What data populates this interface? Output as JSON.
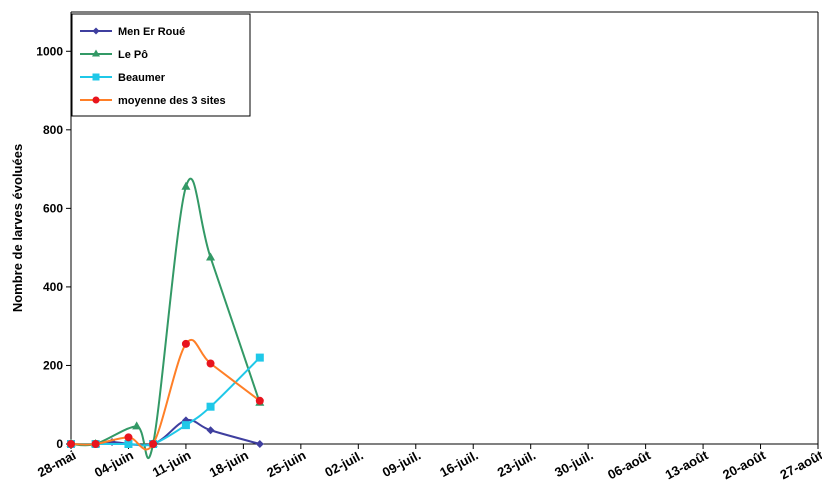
{
  "chart_data": {
    "type": "line",
    "title": "",
    "xlabel": "",
    "ylabel": "Nombre de larves évoluées",
    "ylim": [
      0,
      1100
    ],
    "yticks": [
      0,
      200,
      400,
      600,
      800,
      1000
    ],
    "xticks": [
      "28-mai",
      "04-juin",
      "11-juin",
      "18-juin",
      "25-juin",
      "02-juil.",
      "09-juil.",
      "16-juil.",
      "23-juil.",
      "30-juil.",
      "06-août",
      "13-août",
      "20-août",
      "27-août"
    ],
    "xlim": [
      "2011-05-28",
      "2011-08-27"
    ],
    "grid": false,
    "legend_position": "top-left",
    "series": [
      {
        "name": "Men Er Roué",
        "color": "#3F3F9F",
        "marker": "diamond",
        "x": [
          "2011-05-28",
          "2011-05-31",
          "2011-06-02",
          "2011-06-07",
          "2011-06-11",
          "2011-06-14",
          "2011-06-20"
        ],
        "y": [
          0,
          0,
          5,
          0,
          60,
          35,
          0
        ]
      },
      {
        "name": "Le Pô",
        "color": "#339966",
        "marker": "triangle",
        "x": [
          "2011-05-28",
          "2011-05-31",
          "2011-06-05",
          "2011-06-07",
          "2011-06-11",
          "2011-06-14",
          "2011-06-20"
        ],
        "y": [
          0,
          0,
          45,
          0,
          655,
          475,
          105
        ]
      },
      {
        "name": "Beaumer",
        "color": "#1FC8E8",
        "marker": "square",
        "x": [
          "2011-05-28",
          "2011-05-31",
          "2011-06-04",
          "2011-06-07",
          "2011-06-11",
          "2011-06-14",
          "2011-06-20"
        ],
        "y": [
          0,
          0,
          0,
          0,
          48,
          95,
          220
        ]
      },
      {
        "name": "moyenne des 3 sites",
        "color": "#FF7F27",
        "markerColor": "#E8141E",
        "marker": "circle",
        "x": [
          "2011-05-28",
          "2011-05-31",
          "2011-06-04",
          "2011-06-07",
          "2011-06-11",
          "2011-06-14",
          "2011-06-20"
        ],
        "y": [
          0,
          0,
          17,
          0,
          255,
          205,
          110
        ]
      }
    ]
  }
}
